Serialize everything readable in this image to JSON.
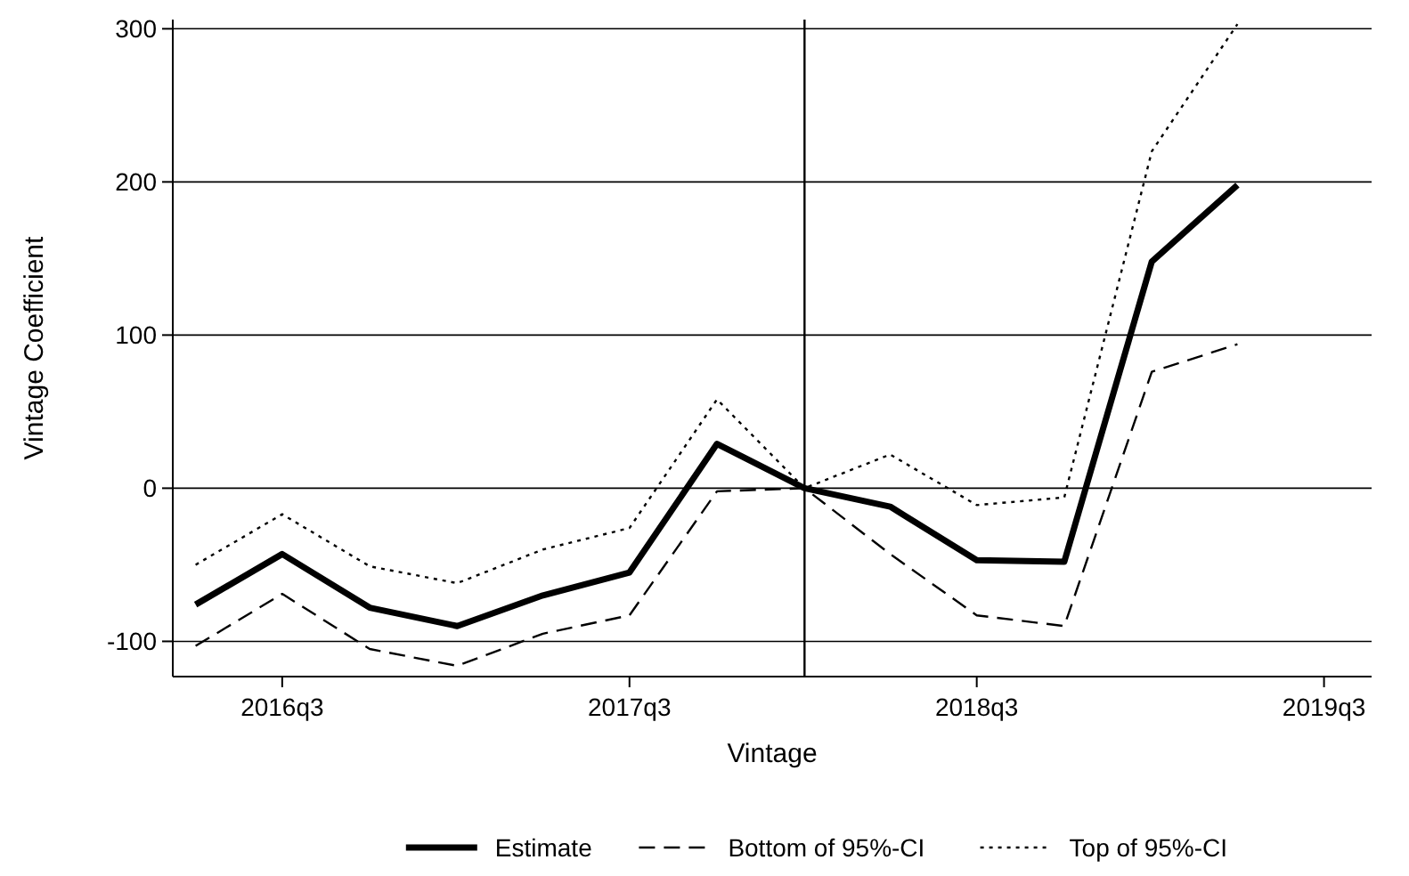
{
  "chart_data": {
    "type": "line",
    "xlabel": "Vintage",
    "ylabel": "Vintage Coefficient",
    "x": [
      "2016-04",
      "2016-07",
      "2016-10",
      "2017-01",
      "2017-04",
      "2017-07",
      "2017-10",
      "2018-01",
      "2018-04",
      "2018-07",
      "2018-10",
      "2019-01",
      "2019-04"
    ],
    "series": [
      {
        "name": "Estimate",
        "color": "#000000",
        "line_style": "solid",
        "values": [
          -76,
          -43,
          -78,
          -90,
          -70,
          -55,
          29,
          0,
          -12,
          -47,
          -48,
          148,
          198
        ]
      },
      {
        "name": "Bottom of 95%-CI",
        "color": "#000000",
        "line_style": "dashed",
        "values": [
          -103,
          -69,
          -105,
          -116,
          -95,
          -83,
          -2,
          0,
          -43,
          -83,
          -90,
          76,
          94
        ]
      },
      {
        "name": "Top of 95%-CI",
        "color": "#000000",
        "line_style": "dotted",
        "values": [
          -50,
          -17,
          -51,
          -62,
          -40,
          -26,
          58,
          0,
          22,
          -11,
          -6,
          220,
          303
        ]
      }
    ],
    "xlim": [
      "2016-03-08",
      "2019-08-20"
    ],
    "xticks": [
      {
        "value": "2016-07",
        "label": "2016q3"
      },
      {
        "value": "2017-07",
        "label": "2017q3"
      },
      {
        "value": "2018-07",
        "label": "2018q3"
      },
      {
        "value": "2019-07",
        "label": "2019q3"
      }
    ],
    "ylim": [
      -123,
      306
    ],
    "yticks": [
      -100,
      0,
      100,
      200,
      300
    ],
    "grid": "y",
    "legend": "bottom",
    "ref_lines": [
      {
        "axis": "x",
        "value": "2018-01",
        "color": "#000000"
      }
    ]
  }
}
